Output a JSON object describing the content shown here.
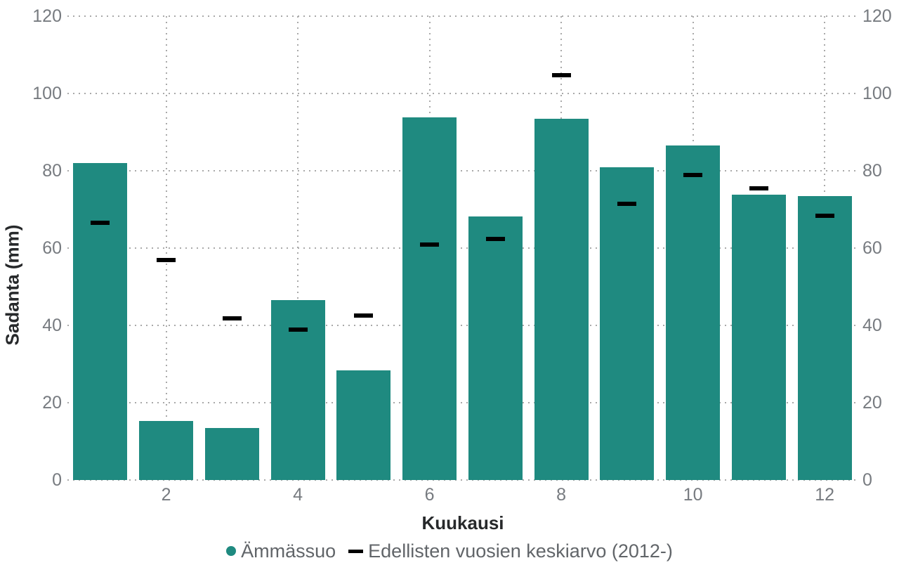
{
  "chart_data": {
    "type": "bar",
    "title": "",
    "xlabel": "Kuukausi",
    "ylabel": "Sadanta (mm)",
    "categories": [
      1,
      2,
      3,
      4,
      5,
      6,
      7,
      8,
      9,
      10,
      11,
      12
    ],
    "x_ticks": [
      2,
      4,
      6,
      8,
      10,
      12
    ],
    "y_ticks": [
      0,
      20,
      40,
      60,
      80,
      100,
      120
    ],
    "ylim": [
      0,
      120
    ],
    "grid": "dotted",
    "dual_y_axis": true,
    "legend_position": "bottom",
    "series": [
      {
        "name": "Ämmässuo",
        "type": "bar",
        "color": "#1f8a80",
        "values": [
          82,
          15.3,
          13.5,
          46.6,
          28.3,
          93.9,
          68.2,
          93.4,
          81,
          86.5,
          73.9,
          73.5
        ]
      },
      {
        "name": "Edellisten vuosien keskiarvo (2012-)",
        "type": "dash-marker",
        "color": "#000000",
        "values": [
          66.5,
          57,
          41.8,
          39,
          42.5,
          61,
          62.3,
          104.8,
          71.5,
          79,
          75.5,
          68.3
        ]
      }
    ]
  },
  "colors": {
    "bar": "#1f8a80",
    "dash_marker": "#000000",
    "gridline": "#a9a9a9",
    "tick_label": "#777b80",
    "axis_title": "#27292b",
    "legend_text": "#616569",
    "background": "#ffffff"
  }
}
